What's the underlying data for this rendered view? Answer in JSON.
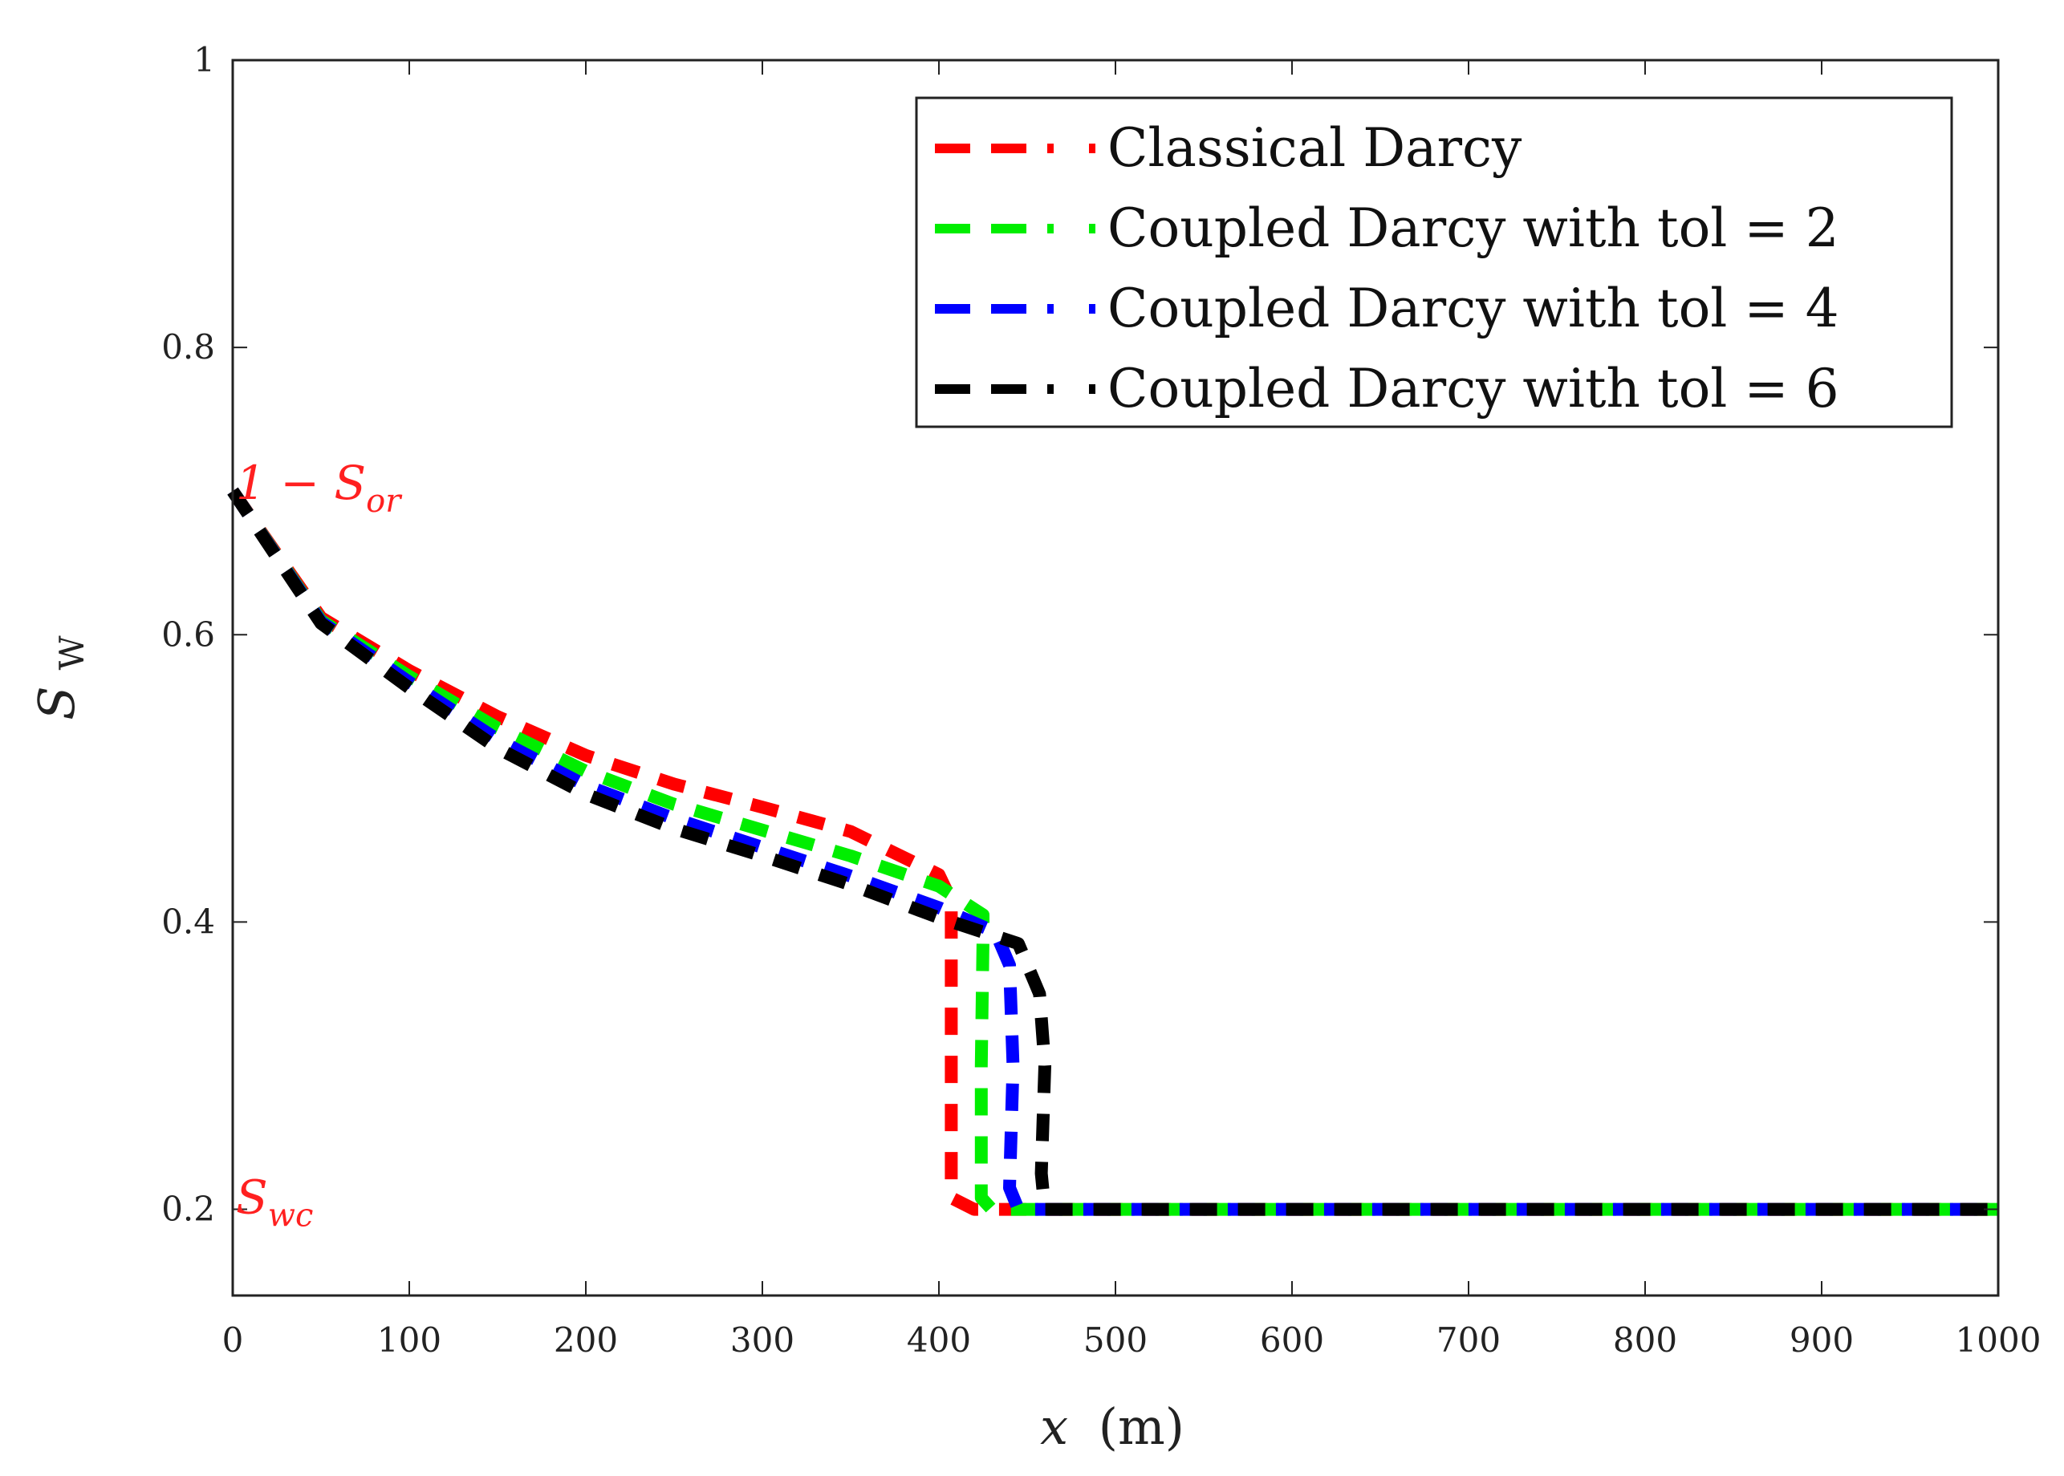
{
  "chart_data": {
    "type": "line",
    "xlabel_var": "x",
    "xlabel_unit": "(m)",
    "ylabel_var": "S",
    "ylabel_sub": "W",
    "xlim": [
      0,
      1000
    ],
    "ylim": [
      0.14,
      1.0
    ],
    "xticks": [
      0,
      100,
      200,
      300,
      400,
      500,
      600,
      700,
      800,
      900,
      1000
    ],
    "yticks": [
      0.2,
      0.4,
      0.6,
      0.8,
      1
    ],
    "ytick_labels": [
      "0.2",
      "0.4",
      "0.6",
      "0.8",
      "1"
    ],
    "grid": false,
    "legend_position": "top-right",
    "annotations": [
      {
        "id": "sor",
        "main": "1 − S",
        "sub": "or",
        "y": 0.7,
        "color": "#ff2020"
      },
      {
        "id": "swc",
        "main": "S",
        "sub": "wc",
        "y": 0.2,
        "color": "#ff2020"
      }
    ],
    "series": [
      {
        "name": "Classical Darcy",
        "color": "#ff0000",
        "x": [
          0,
          50,
          100,
          150,
          200,
          250,
          300,
          350,
          400,
          407,
          407,
          407,
          407,
          420,
          1000
        ],
        "y": [
          0.7,
          0.612,
          0.575,
          0.543,
          0.516,
          0.496,
          0.48,
          0.463,
          0.433,
          0.415,
          0.4,
          0.3,
          0.208,
          0.2,
          0.2
        ]
      },
      {
        "name": "Coupled Darcy with tol = 2",
        "color": "#00ee00",
        "x": [
          0,
          50,
          100,
          150,
          200,
          250,
          300,
          350,
          400,
          425,
          425,
          424,
          424,
          430,
          1000
        ],
        "y": [
          0.7,
          0.61,
          0.571,
          0.535,
          0.505,
          0.482,
          0.464,
          0.446,
          0.425,
          0.405,
          0.39,
          0.3,
          0.208,
          0.2,
          0.2
        ]
      },
      {
        "name": "Coupled Darcy with tol = 4",
        "color": "#0000ff",
        "x": [
          0,
          50,
          100,
          150,
          200,
          250,
          300,
          350,
          400,
          432,
          440,
          442,
          440,
          445,
          1000
        ],
        "y": [
          0.7,
          0.609,
          0.567,
          0.527,
          0.495,
          0.472,
          0.452,
          0.432,
          0.41,
          0.393,
          0.37,
          0.3,
          0.215,
          0.2,
          0.2
        ]
      },
      {
        "name": "Coupled Darcy with tol = 6",
        "color": "#000000",
        "x": [
          0,
          50,
          100,
          150,
          200,
          250,
          300,
          350,
          400,
          445,
          457,
          460,
          458,
          460,
          1000
        ],
        "y": [
          0.7,
          0.608,
          0.563,
          0.521,
          0.489,
          0.465,
          0.446,
          0.426,
          0.403,
          0.385,
          0.35,
          0.3,
          0.225,
          0.2,
          0.2
        ]
      }
    ]
  }
}
